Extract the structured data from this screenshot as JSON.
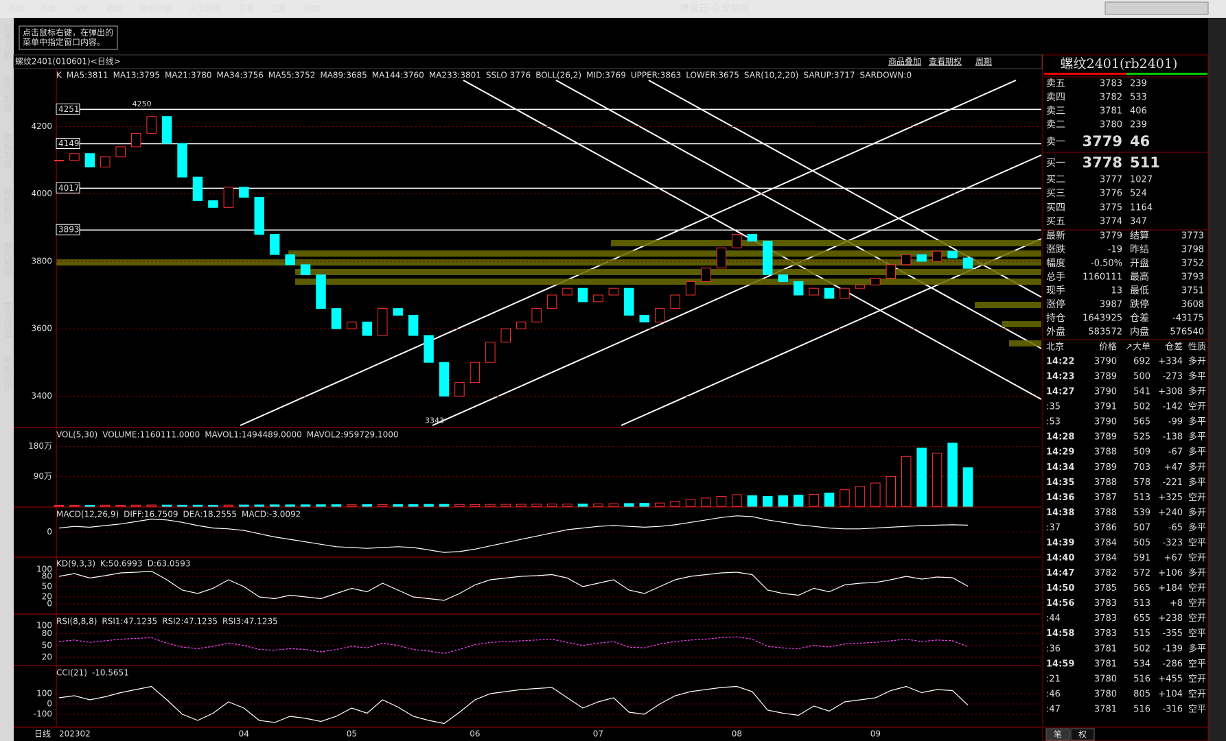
{
  "menu": {
    "items": [
      "系统",
      "页面",
      "分析",
      "新闻",
      "特色功能",
      "永安期货",
      "交易",
      "工具",
      "帮助"
    ],
    "title": "博易云-永安期货"
  },
  "side_tabs": [
    "技术分析",
    "国内期货",
    "股指期货",
    "期权报价",
    "期权策略",
    "热点排名",
    "新闻资讯"
  ],
  "tip": [
    "点击鼠标右键，在弹出的",
    "菜单中指定窗口内容。"
  ],
  "chart": {
    "header": "螺纹2401(010601)<日线>",
    "links": [
      "商品叠加",
      "查看期权",
      "周期"
    ],
    "price": {
      "legend": [
        {
          "text": "K",
          "color": "#ffffff"
        },
        {
          "text": "MA5:3811",
          "color": "#ffffff"
        },
        {
          "text": "MA13:3795",
          "color": "#ffff00"
        },
        {
          "text": "MA21:3780",
          "color": "#ff00ff"
        },
        {
          "text": "MA34:3756",
          "color": "#00ff00"
        },
        {
          "text": "MA55:3752",
          "color": "#8080ff"
        },
        {
          "text": "MA89:3685",
          "color": "#ff8000"
        },
        {
          "text": "MA144:3760",
          "color": "#60a0ff"
        },
        {
          "text": "MA233:3801",
          "color": "#ff3030"
        },
        {
          "text": "SSLO 3776",
          "color": "#ffffff"
        },
        {
          "text": "BOLL(26,2)",
          "color": "#ffffff"
        },
        {
          "text": "MID:3769",
          "color": "#ffff00"
        },
        {
          "text": "UPPER:3863",
          "color": "#ff00ff"
        },
        {
          "text": "LOWER:3675",
          "color": "#00ff00"
        },
        {
          "text": "SAR(10,2,20)",
          "color": "#ffffff"
        },
        {
          "text": "SARUP:3717",
          "color": "#ff3030"
        },
        {
          "text": "SARDOWN:0",
          "color": "#00ff00"
        }
      ],
      "ylim": [
        3309,
        4372
      ],
      "yticks": [
        3400,
        3600,
        3800,
        4000,
        4200
      ],
      "levels": [
        4251,
        4149,
        4017,
        3893
      ],
      "annotations": [
        {
          "index": 6,
          "value": 4250
        },
        {
          "index": 25,
          "value": 3343
        }
      ],
      "up_color": "#ff3232",
      "down_color": "#00ffff",
      "closes": [
        4100,
        4120,
        4080,
        4110,
        4140,
        4180,
        4230,
        4150,
        4050,
        3980,
        3960,
        4020,
        3990,
        3880,
        3820,
        3790,
        3760,
        3660,
        3600,
        3620,
        3580,
        3660,
        3640,
        3580,
        3500,
        3400,
        3440,
        3500,
        3560,
        3600,
        3620,
        3660,
        3700,
        3720,
        3680,
        3700,
        3720,
        3640,
        3620,
        3660,
        3700,
        3740,
        3780,
        3840,
        3880,
        3860,
        3760,
        3740,
        3700,
        3720,
        3690,
        3720,
        3730,
        3750,
        3790,
        3820,
        3800,
        3830,
        3810,
        3779
      ]
    },
    "volume": {
      "legend": [
        {
          "text": "VOL(5,30)",
          "color": "#ffffff"
        },
        {
          "text": "VOLUME:1160111.0000",
          "color": "#ffffff"
        },
        {
          "text": "MAVOL1:1494489.0000",
          "color": "#ffffff"
        },
        {
          "text": "MAVOL2:959729.1000",
          "color": "#ffff00"
        }
      ],
      "ylim": [
        0,
        2350000
      ],
      "yticks": [
        {
          "value": 900000,
          "label": "90万"
        },
        {
          "value": 1800000,
          "label": "180万"
        }
      ],
      "values": [
        30000,
        32000,
        30000,
        35000,
        33000,
        36000,
        40000,
        38000,
        35000,
        36000,
        34000,
        38000,
        40000,
        42000,
        45000,
        44000,
        46000,
        48000,
        50000,
        47000,
        52000,
        50000,
        55000,
        53000,
        58000,
        60000,
        56000,
        54000,
        58000,
        60000,
        62000,
        65000,
        70000,
        68000,
        72000,
        75000,
        80000,
        85000,
        90000,
        100000,
        150000,
        200000,
        250000,
        300000,
        350000,
        320000,
        300000,
        320000,
        340000,
        360000,
        400000,
        500000,
        600000,
        700000,
        900000,
        1500000,
        1750000,
        1600000,
        1900000,
        1160111
      ]
    },
    "macd": {
      "legend": [
        {
          "text": "MACD(12,26,9)",
          "color": "#ffffff"
        },
        {
          "text": "DIFF:16.7509",
          "color": "#ffffff"
        },
        {
          "text": "DEA:18.2555",
          "color": "#ffff00"
        },
        {
          "text": "MACD:-3.0092",
          "color": "#ffffff"
        }
      ],
      "ylim": [
        -60,
        60
      ],
      "yticks": [
        0
      ],
      "values": [
        10,
        14,
        12,
        16,
        20,
        26,
        32,
        30,
        24,
        16,
        10,
        8,
        4,
        -4,
        -12,
        -18,
        -24,
        -30,
        -36,
        -38,
        -40,
        -38,
        -36,
        -38,
        -44,
        -50,
        -48,
        -42,
        -34,
        -26,
        -18,
        -10,
        -2,
        6,
        10,
        14,
        16,
        14,
        12,
        14,
        18,
        24,
        30,
        36,
        40,
        38,
        30,
        24,
        18,
        14,
        10,
        8,
        8,
        10,
        12,
        14,
        16,
        17,
        18,
        17
      ]
    },
    "kd": {
      "legend": [
        {
          "text": "KD(9,3,3)",
          "color": "#ffffff"
        },
        {
          "text": "K:50.6993",
          "color": "#ffffff"
        },
        {
          "text": "D:63.0593",
          "color": "#ffff00"
        }
      ],
      "ylim": [
        -28,
        136
      ],
      "yticks": [
        0,
        20,
        50,
        80,
        100
      ],
      "values": [
        80,
        88,
        75,
        82,
        90,
        92,
        95,
        70,
        40,
        30,
        45,
        70,
        50,
        20,
        15,
        25,
        20,
        15,
        30,
        45,
        35,
        60,
        40,
        20,
        15,
        10,
        30,
        55,
        70,
        75,
        80,
        82,
        85,
        75,
        50,
        60,
        70,
        40,
        30,
        50,
        70,
        80,
        85,
        90,
        92,
        85,
        40,
        30,
        25,
        45,
        35,
        55,
        60,
        62,
        70,
        80,
        72,
        78,
        76,
        51
      ]
    },
    "rsi": {
      "legend": [
        {
          "text": "RSI(8,8,8)",
          "color": "#ffffff"
        },
        {
          "text": "RSI1:47.1235",
          "color": "#ffffff"
        },
        {
          "text": "RSI2:47.1235",
          "color": "#ffff00"
        },
        {
          "text": "RSI3:47.1235",
          "color": "#ff00ff"
        }
      ],
      "ylim": [
        1,
        128
      ],
      "yticks": [
        20,
        50,
        80,
        100
      ],
      "values": [
        60,
        64,
        58,
        62,
        66,
        68,
        70,
        56,
        46,
        42,
        48,
        56,
        50,
        40,
        38,
        42,
        40,
        34,
        40,
        48,
        44,
        56,
        50,
        40,
        36,
        30,
        40,
        52,
        58,
        60,
        62,
        64,
        66,
        58,
        50,
        56,
        60,
        46,
        44,
        54,
        60,
        64,
        66,
        70,
        72,
        66,
        48,
        44,
        42,
        50,
        46,
        54,
        56,
        58,
        62,
        66,
        60,
        64,
        62,
        47
      ]
    },
    "cci": {
      "legend": [
        {
          "text": "CCI(21)",
          "color": "#ffffff"
        },
        {
          "text": "-10.5651",
          "color": "#ffffff"
        }
      ],
      "ylim": [
        -220,
        367
      ],
      "yticks": [
        -100,
        0,
        100
      ],
      "values": [
        60,
        80,
        40,
        70,
        110,
        140,
        170,
        40,
        -100,
        -160,
        -90,
        20,
        -40,
        -160,
        -180,
        -120,
        -140,
        -170,
        -120,
        -40,
        -90,
        40,
        -30,
        -120,
        -160,
        -190,
        -80,
        40,
        100,
        120,
        140,
        150,
        160,
        60,
        -40,
        20,
        60,
        -80,
        -100,
        0,
        80,
        120,
        140,
        160,
        170,
        120,
        -60,
        -90,
        -110,
        -20,
        -70,
        20,
        40,
        60,
        130,
        170,
        110,
        140,
        130,
        -11
      ]
    },
    "x_labels": [
      {
        "index": 0,
        "label": "202302"
      },
      {
        "index": 12,
        "label": "04"
      },
      {
        "index": 19,
        "label": "05"
      },
      {
        "index": 27,
        "label": "06"
      },
      {
        "index": 35,
        "label": "07"
      },
      {
        "index": 44,
        "label": "08"
      },
      {
        "index": 53,
        "label": "09"
      }
    ],
    "period_label": "日线"
  },
  "quote": {
    "title": "螺纹2401(rb2401)",
    "book": [
      {
        "label": "卖五",
        "price": "3783",
        "volume": "239"
      },
      {
        "label": "卖四",
        "price": "3782",
        "volume": "533"
      },
      {
        "label": "卖三",
        "price": "3781",
        "volume": "406"
      },
      {
        "label": "卖二",
        "price": "3780",
        "volume": "239"
      },
      {
        "label": "卖一",
        "price": "3779",
        "volume": "46"
      },
      {
        "label": "买一",
        "price": "3778",
        "volume": "511"
      },
      {
        "label": "买二",
        "price": "3777",
        "volume": "1027"
      },
      {
        "label": "买三",
        "price": "3776",
        "volume": "524"
      },
      {
        "label": "买四",
        "price": "3775",
        "volume": "1164"
      },
      {
        "label": "买五",
        "price": "3774",
        "volume": "347"
      }
    ],
    "stats": [
      [
        "最新",
        "3779",
        "结算",
        "3773"
      ],
      [
        "涨跌",
        "-19",
        "昨结",
        "3798"
      ],
      [
        "幅度",
        "-0.50%",
        "开盘",
        "3752"
      ],
      [
        "总手",
        "1160111",
        "最高",
        "3793"
      ],
      [
        "现手",
        "13",
        "最低",
        "3751"
      ],
      [
        "涨停",
        "3987",
        "跌停",
        "3608"
      ],
      [
        "持仓",
        "1643925",
        "仓差",
        "-43175"
      ],
      [
        "外盘",
        "583572",
        "内盘",
        "576540"
      ]
    ],
    "ticks_header": [
      "北京",
      "价格",
      "↗大单",
      "仓差",
      "性质"
    ],
    "ticks": [
      [
        "14:22",
        "3790",
        "692",
        "+334",
        "多开"
      ],
      [
        "14:23",
        "3789",
        "500",
        "-273",
        "多平"
      ],
      [
        "14:27",
        "3790",
        "541",
        "+308",
        "多开"
      ],
      [
        ":35",
        "3791",
        "502",
        "-142",
        "空开"
      ],
      [
        ":53",
        "3790",
        "565",
        "-99",
        "多平"
      ],
      [
        "14:28",
        "3789",
        "525",
        "-138",
        "多平"
      ],
      [
        "14:29",
        "3788",
        "509",
        "-67",
        "多平"
      ],
      [
        "14:34",
        "3789",
        "703",
        "+47",
        "多开"
      ],
      [
        "14:35",
        "3788",
        "578",
        "-221",
        "多平"
      ],
      [
        "14:36",
        "3787",
        "513",
        "+325",
        "空开"
      ],
      [
        "14:38",
        "3788",
        "539",
        "+240",
        "多开"
      ],
      [
        ":37",
        "3786",
        "507",
        "-65",
        "多平"
      ],
      [
        "14:39",
        "3784",
        "505",
        "-323",
        "空平"
      ],
      [
        "14:40",
        "3784",
        "591",
        "+67",
        "空开"
      ],
      [
        "14:47",
        "3782",
        "572",
        "+106",
        "多开"
      ],
      [
        "14:50",
        "3785",
        "565",
        "+184",
        "空开"
      ],
      [
        "14:56",
        "3783",
        "513",
        "+8",
        "空开"
      ],
      [
        ":44",
        "3783",
        "655",
        "+238",
        "空开"
      ],
      [
        "14:58",
        "3783",
        "515",
        "-355",
        "空平"
      ],
      [
        ":36",
        "3781",
        "502",
        "-139",
        "多平"
      ],
      [
        "14:59",
        "3781",
        "534",
        "-286",
        "空平"
      ],
      [
        ":21",
        "3780",
        "516",
        "+455",
        "空开"
      ],
      [
        ":46",
        "3780",
        "805",
        "+104",
        "空开"
      ],
      [
        ":47",
        "3781",
        "516",
        "-316",
        "空平"
      ]
    ],
    "tabs": [
      "笔",
      "权"
    ]
  }
}
